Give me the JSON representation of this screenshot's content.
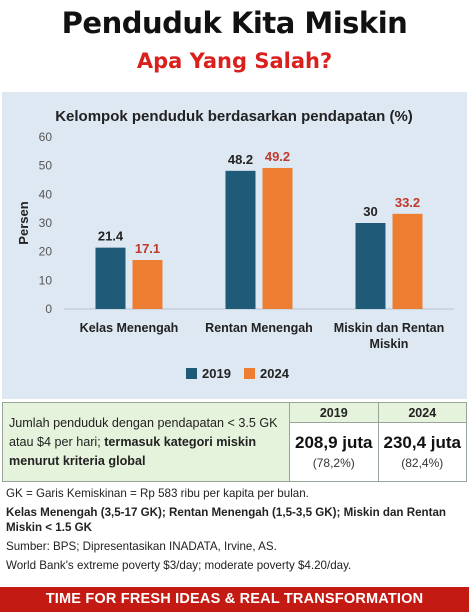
{
  "header": {
    "title": "Penduduk Kita Miskin",
    "subtitle": "Apa Yang Salah?"
  },
  "colors": {
    "series_2019": "#1f5a78",
    "series_2024": "#ed7d31",
    "label_2024": "#c0392b",
    "footer_bg": "#c41a14",
    "subtitle": "#d9201c"
  },
  "chart_data": {
    "type": "bar",
    "title": "Kelompok penduduk berdasarkan pendapatan (%)",
    "ylabel": "Persen",
    "xlabel": "",
    "categories": [
      "Kelas Menengah",
      "Rentan Menengah",
      "Miskin dan Rentan Miskin"
    ],
    "category_lines": [
      [
        "Kelas Menengah"
      ],
      [
        "Rentan Menengah"
      ],
      [
        "Miskin dan Rentan",
        "Miskin"
      ]
    ],
    "series": [
      {
        "name": "2019",
        "values": [
          21.4,
          48.2,
          30
        ],
        "labels": [
          "21.4",
          "48.2",
          "30"
        ]
      },
      {
        "name": "2024",
        "values": [
          17.1,
          49.2,
          33.2
        ],
        "labels": [
          "17.1",
          "49.2",
          "33.2"
        ]
      }
    ],
    "ylim": [
      0,
      60
    ],
    "yticks": [
      "0",
      "10",
      "20",
      "30",
      "40",
      "50",
      "60"
    ],
    "grid": false,
    "legend_position": "bottom"
  },
  "table": {
    "description_plain": "Jumlah penduduk dengan pendapatan < 3.5 GK atau $4 per hari; ",
    "description_bold": "termasuk kategori miskin menurut kriteria global",
    "col_2019": "2019",
    "col_2024": "2024",
    "val_2019": "208,9 juta",
    "pct_2019": "(78,2%)",
    "val_2024": "230,4 juta",
    "pct_2024": "(82,4%)"
  },
  "notes": {
    "gk_definition": "GK = Garis Kemiskinan = Rp 583 ribu per kapita per bulan.",
    "categories_definition": "Kelas Menengah (3,5-17 GK); Rentan Menengah (1,5-3,5 GK); Miskin dan Rentan Miskin < 1.5 GK",
    "source": "Sumber: BPS; Dipresentasikan INADATA, Irvine, AS.",
    "world_bank": "World Bank's extreme poverty $3/day; moderate poverty $4.20/day."
  },
  "footer": {
    "text": "TIME FOR FRESH IDEAS & REAL TRANSFORMATION"
  }
}
